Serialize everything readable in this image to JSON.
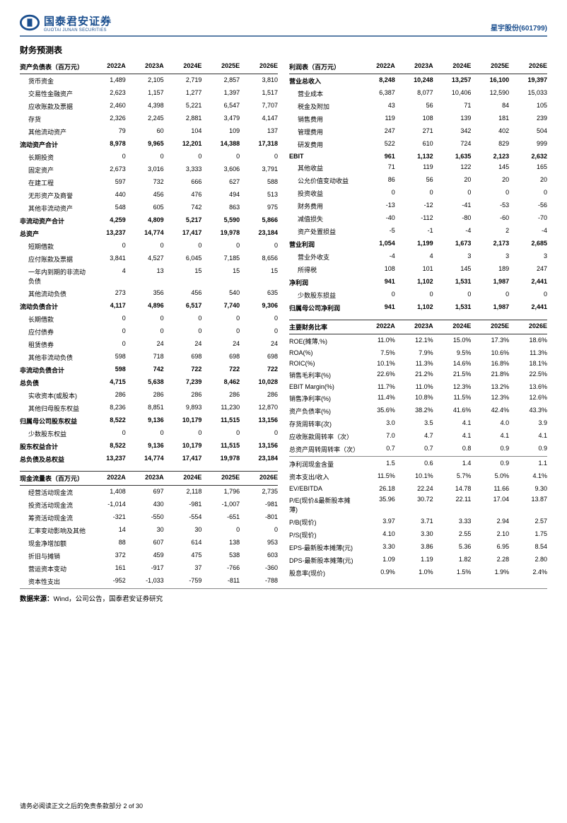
{
  "header": {
    "company_cn": "国泰君安证券",
    "company_en": "GUOTAI JUNAN SECURITIES",
    "stock": "星宇股份(601799)"
  },
  "title": "财务预测表",
  "years": [
    "2022A",
    "2023A",
    "2024E",
    "2025E",
    "2026E"
  ],
  "bs": {
    "title": "资产负债表（百万元）",
    "rows": [
      {
        "l": "货币资金",
        "i": 1,
        "v": [
          "1,489",
          "2,105",
          "2,719",
          "2,857",
          "3,810"
        ]
      },
      {
        "l": "交易性金融资产",
        "i": 1,
        "v": [
          "2,623",
          "1,157",
          "1,277",
          "1,397",
          "1,517"
        ]
      },
      {
        "l": "应收账款及票据",
        "i": 1,
        "v": [
          "2,460",
          "4,398",
          "5,221",
          "6,547",
          "7,707"
        ]
      },
      {
        "l": "存货",
        "i": 1,
        "v": [
          "2,326",
          "2,245",
          "2,881",
          "3,479",
          "4,147"
        ]
      },
      {
        "l": "其他流动资产",
        "i": 1,
        "v": [
          "79",
          "60",
          "104",
          "109",
          "137"
        ]
      },
      {
        "l": "流动资产合计",
        "b": 1,
        "v": [
          "8,978",
          "9,965",
          "12,201",
          "14,388",
          "17,318"
        ]
      },
      {
        "l": "长期投资",
        "i": 1,
        "v": [
          "0",
          "0",
          "0",
          "0",
          "0"
        ]
      },
      {
        "l": "固定资产",
        "i": 1,
        "v": [
          "2,673",
          "3,016",
          "3,333",
          "3,606",
          "3,791"
        ]
      },
      {
        "l": "在建工程",
        "i": 1,
        "v": [
          "597",
          "732",
          "666",
          "627",
          "588"
        ]
      },
      {
        "l": "无形资产及商誉",
        "i": 1,
        "v": [
          "440",
          "456",
          "476",
          "494",
          "513"
        ]
      },
      {
        "l": "其他非流动资产",
        "i": 1,
        "v": [
          "548",
          "605",
          "742",
          "863",
          "975"
        ]
      },
      {
        "l": "非流动资产合计",
        "b": 1,
        "v": [
          "4,259",
          "4,809",
          "5,217",
          "5,590",
          "5,866"
        ]
      },
      {
        "l": "总资产",
        "b": 1,
        "v": [
          "13,237",
          "14,774",
          "17,417",
          "19,978",
          "23,184"
        ]
      },
      {
        "l": "短期借款",
        "i": 1,
        "v": [
          "0",
          "0",
          "0",
          "0",
          "0"
        ]
      },
      {
        "l": "应付账款及票据",
        "i": 1,
        "v": [
          "3,841",
          "4,527",
          "6,045",
          "7,185",
          "8,656"
        ]
      },
      {
        "l": "一年内到期的非流动负债",
        "i": 1,
        "v": [
          "4",
          "13",
          "15",
          "15",
          "15"
        ]
      },
      {
        "l": "其他流动负债",
        "i": 1,
        "v": [
          "273",
          "356",
          "456",
          "540",
          "635"
        ]
      },
      {
        "l": "流动负债合计",
        "b": 1,
        "v": [
          "4,117",
          "4,896",
          "6,517",
          "7,740",
          "9,306"
        ]
      },
      {
        "l": "长期借款",
        "i": 1,
        "v": [
          "0",
          "0",
          "0",
          "0",
          "0"
        ]
      },
      {
        "l": "应付债券",
        "i": 1,
        "v": [
          "0",
          "0",
          "0",
          "0",
          "0"
        ]
      },
      {
        "l": "租赁债券",
        "i": 1,
        "v": [
          "0",
          "24",
          "24",
          "24",
          "24"
        ]
      },
      {
        "l": "其他非流动负债",
        "i": 1,
        "v": [
          "598",
          "718",
          "698",
          "698",
          "698"
        ]
      },
      {
        "l": "非流动负债合计",
        "b": 1,
        "v": [
          "598",
          "742",
          "722",
          "722",
          "722"
        ]
      },
      {
        "l": "总负债",
        "b": 1,
        "v": [
          "4,715",
          "5,638",
          "7,239",
          "8,462",
          "10,028"
        ]
      },
      {
        "l": "实收资本(或股本)",
        "i": 1,
        "v": [
          "286",
          "286",
          "286",
          "286",
          "286"
        ]
      },
      {
        "l": "其他归母股东权益",
        "i": 1,
        "v": [
          "8,236",
          "8,851",
          "9,893",
          "11,230",
          "12,870"
        ]
      },
      {
        "l": "归属母公司股东权益",
        "b": 1,
        "v": [
          "8,522",
          "9,136",
          "10,179",
          "11,515",
          "13,156"
        ]
      },
      {
        "l": "少数股东权益",
        "i": 1,
        "v": [
          "0",
          "0",
          "0",
          "0",
          "0"
        ]
      },
      {
        "l": "股东权益合计",
        "b": 1,
        "v": [
          "8,522",
          "9,136",
          "10,179",
          "11,515",
          "13,156"
        ]
      },
      {
        "l": "总负债及总权益",
        "b": 1,
        "v": [
          "13,237",
          "14,774",
          "17,417",
          "19,978",
          "23,184"
        ]
      }
    ]
  },
  "cf": {
    "title": "现金流量表（百万元）",
    "rows": [
      {
        "l": "经营活动现金流",
        "i": 1,
        "v": [
          "1,408",
          "697",
          "2,118",
          "1,796",
          "2,735"
        ]
      },
      {
        "l": "投资活动现金流",
        "i": 1,
        "v": [
          "-1,014",
          "430",
          "-981",
          "-1,007",
          "-981"
        ]
      },
      {
        "l": "筹资活动现金流",
        "i": 1,
        "v": [
          "-321",
          "-550",
          "-554",
          "-651",
          "-801"
        ]
      },
      {
        "l": "汇率变动影响及其他",
        "i": 1,
        "v": [
          "14",
          "30",
          "30",
          "0",
          "0"
        ]
      },
      {
        "l": "现金净增加额",
        "i": 1,
        "v": [
          "88",
          "607",
          "614",
          "138",
          "953"
        ]
      },
      {
        "l": "折旧与摊销",
        "i": 1,
        "v": [
          "372",
          "459",
          "475",
          "538",
          "603"
        ]
      },
      {
        "l": "营运资本变动",
        "i": 1,
        "v": [
          "161",
          "-917",
          "37",
          "-766",
          "-360"
        ]
      },
      {
        "l": "资本性支出",
        "i": 1,
        "v": [
          "-952",
          "-1,033",
          "-759",
          "-811",
          "-788"
        ]
      }
    ]
  },
  "is": {
    "title": "利润表（百万元）",
    "rows": [
      {
        "l": "营业总收入",
        "b": 1,
        "v": [
          "8,248",
          "10,248",
          "13,257",
          "16,100",
          "19,397"
        ]
      },
      {
        "l": "营业成本",
        "i": 1,
        "v": [
          "6,387",
          "8,077",
          "10,406",
          "12,590",
          "15,033"
        ]
      },
      {
        "l": "税金及附加",
        "i": 1,
        "v": [
          "43",
          "56",
          "71",
          "84",
          "105"
        ]
      },
      {
        "l": "销售费用",
        "i": 1,
        "v": [
          "119",
          "108",
          "139",
          "181",
          "239"
        ]
      },
      {
        "l": "管理费用",
        "i": 1,
        "v": [
          "247",
          "271",
          "342",
          "402",
          "504"
        ]
      },
      {
        "l": "研发费用",
        "i": 1,
        "v": [
          "522",
          "610",
          "724",
          "829",
          "999"
        ]
      },
      {
        "l": "EBIT",
        "b": 1,
        "v": [
          "961",
          "1,132",
          "1,635",
          "2,123",
          "2,632"
        ]
      },
      {
        "l": "其他收益",
        "i": 1,
        "v": [
          "71",
          "119",
          "122",
          "145",
          "165"
        ]
      },
      {
        "l": "公允价值变动收益",
        "i": 1,
        "v": [
          "86",
          "56",
          "20",
          "20",
          "20"
        ]
      },
      {
        "l": "投资收益",
        "i": 1,
        "v": [
          "0",
          "0",
          "0",
          "0",
          "0"
        ]
      },
      {
        "l": "财务费用",
        "i": 1,
        "v": [
          "-13",
          "-12",
          "-41",
          "-53",
          "-56"
        ]
      },
      {
        "l": "减值损失",
        "i": 1,
        "v": [
          "-40",
          "-112",
          "-80",
          "-60",
          "-70"
        ]
      },
      {
        "l": "资产处置损益",
        "i": 1,
        "v": [
          "-5",
          "-1",
          "-4",
          "2",
          "-4"
        ]
      },
      {
        "l": "营业利润",
        "b": 1,
        "v": [
          "1,054",
          "1,199",
          "1,673",
          "2,173",
          "2,685"
        ]
      },
      {
        "l": "营业外收支",
        "i": 1,
        "v": [
          "-4",
          "4",
          "3",
          "3",
          "3"
        ]
      },
      {
        "l": "所得税",
        "i": 1,
        "v": [
          "108",
          "101",
          "145",
          "189",
          "247"
        ]
      },
      {
        "l": "净利润",
        "b": 1,
        "v": [
          "941",
          "1,102",
          "1,531",
          "1,987",
          "2,441"
        ]
      },
      {
        "l": "少数股东损益",
        "i": 1,
        "v": [
          "0",
          "0",
          "0",
          "0",
          "0"
        ]
      },
      {
        "l": "归属母公司净利润",
        "b": 1,
        "v": [
          "941",
          "1,102",
          "1,531",
          "1,987",
          "2,441"
        ]
      }
    ]
  },
  "rt": {
    "title": "主要财务比率",
    "rows": [
      {
        "l": "ROE(摊薄,%)",
        "v": [
          "11.0%",
          "12.1%",
          "15.0%",
          "17.3%",
          "18.6%"
        ]
      },
      {
        "l": "ROA(%)",
        "v": [
          "7.5%",
          "7.9%",
          "9.5%",
          "10.6%",
          "11.3%"
        ]
      },
      {
        "l": "ROIC(%)",
        "v": [
          "10.1%",
          "11.3%",
          "14.6%",
          "16.8%",
          "18.1%"
        ]
      },
      {
        "l": "销售毛利率(%)",
        "v": [
          "22.6%",
          "21.2%",
          "21.5%",
          "21.8%",
          "22.5%"
        ]
      },
      {
        "l": "EBIT Margin(%)",
        "v": [
          "11.7%",
          "11.0%",
          "12.3%",
          "13.2%",
          "13.6%"
        ]
      },
      {
        "l": "销售净利率(%)",
        "v": [
          "11.4%",
          "10.8%",
          "11.5%",
          "12.3%",
          "12.6%"
        ]
      },
      {
        "l": "资产负债率(%)",
        "v": [
          "35.6%",
          "38.2%",
          "41.6%",
          "42.4%",
          "43.3%"
        ]
      },
      {
        "l": "存货周转率(次)",
        "v": [
          "3.0",
          "3.5",
          "4.1",
          "4.0",
          "3.9"
        ]
      },
      {
        "l": "应收账款周转率（次）",
        "v": [
          "7.0",
          "4.7",
          "4.1",
          "4.1",
          "4.1"
        ]
      },
      {
        "l": "总资产周转周转率（次）",
        "v": [
          "0.7",
          "0.7",
          "0.8",
          "0.9",
          "0.9"
        ],
        "sep": 1
      },
      {
        "l": "净利润现金含量",
        "v": [
          "1.5",
          "0.6",
          "1.4",
          "0.9",
          "1.1"
        ]
      },
      {
        "l": "资本支出/收入",
        "v": [
          "11.5%",
          "10.1%",
          "5.7%",
          "5.0%",
          "4.1%"
        ]
      },
      {
        "l": "EV/EBITDA",
        "v": [
          "26.18",
          "22.24",
          "14.78",
          "11.66",
          "9.30"
        ]
      },
      {
        "l": "P/E(现价&最新股本摊薄)",
        "v": [
          "35.96",
          "30.72",
          "22.11",
          "17.04",
          "13.87"
        ]
      },
      {
        "l": "P/B(现价)",
        "v": [
          "3.97",
          "3.71",
          "3.33",
          "2.94",
          "2.57"
        ]
      },
      {
        "l": "P/S(现价)",
        "v": [
          "4.10",
          "3.30",
          "2.55",
          "2.10",
          "1.75"
        ]
      },
      {
        "l": "EPS-最新股本摊薄(元)",
        "v": [
          "3.30",
          "3.86",
          "5.36",
          "6.95",
          "8.54"
        ]
      },
      {
        "l": "DPS-最新股本摊薄(元)",
        "v": [
          "1.09",
          "1.19",
          "1.82",
          "2.28",
          "2.80"
        ]
      },
      {
        "l": "股息率(现价)",
        "v": [
          "0.9%",
          "1.0%",
          "1.5%",
          "1.9%",
          "2.4%"
        ]
      }
    ]
  },
  "source": {
    "label": "数据来源：",
    "text": "Wind，公司公告，国泰君安证券研究"
  },
  "footer": "请务必阅读正文之后的免责条款部分 2 of 30"
}
